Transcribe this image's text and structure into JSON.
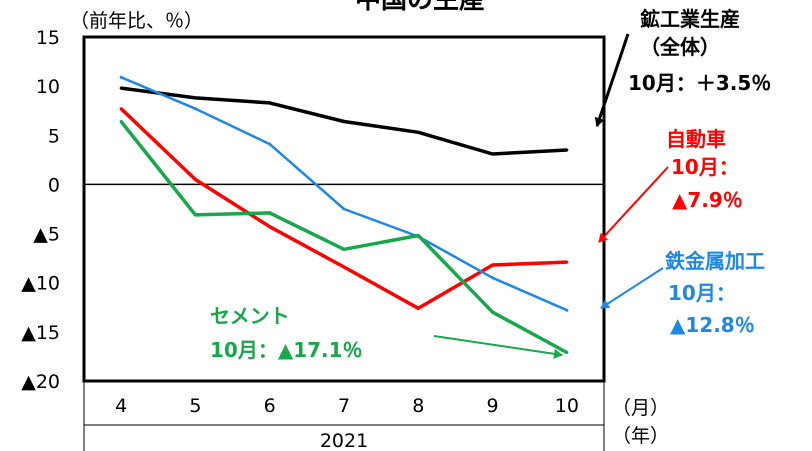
{
  "chart_data": {
    "type": "line",
    "title": "中国の生産",
    "ylabel": "（前年比、％）",
    "xlabel_unit": "（月）",
    "year_unit": "（年）",
    "year_label": "2021",
    "ylim": [
      -20,
      15
    ],
    "y_ticks": [
      {
        "value": 15,
        "label": "15"
      },
      {
        "value": 10,
        "label": "10"
      },
      {
        "value": 5,
        "label": "5"
      },
      {
        "value": 0,
        "label": "0"
      },
      {
        "value": -5,
        "label": "▲5"
      },
      {
        "value": -10,
        "label": "▲10"
      },
      {
        "value": -15,
        "label": "▲15"
      },
      {
        "value": -20,
        "label": "▲20"
      }
    ],
    "x": [
      "4",
      "5",
      "6",
      "7",
      "8",
      "9",
      "10"
    ],
    "series": [
      {
        "name": "鉱工業生産（全体）",
        "color": "#000000",
        "values": [
          9.8,
          8.8,
          8.3,
          6.4,
          5.3,
          3.1,
          3.5
        ],
        "label_lines": [
          "鉱工業生産",
          "（全体）",
          "10月：＋3.5％"
        ]
      },
      {
        "name": "自動車",
        "color": "#ff0000",
        "values": [
          7.7,
          0.5,
          -4.3,
          -8.4,
          -12.6,
          -8.2,
          -7.9
        ],
        "label_lines": [
          "自動車",
          "10月：",
          "▲7.9％"
        ]
      },
      {
        "name": "鉄金属加工",
        "color": "#1e88e5",
        "values": [
          10.9,
          7.7,
          4.1,
          -2.5,
          -5.3,
          -9.5,
          -12.8
        ],
        "label_lines": [
          "鉄金属加工",
          "10月：",
          "▲12.8％"
        ]
      },
      {
        "name": "セメント",
        "color": "#16a84a",
        "values": [
          6.4,
          -3.1,
          -2.9,
          -6.6,
          -5.2,
          -13.0,
          -17.1
        ],
        "label_lines": [
          "セメント",
          "10月：▲17.1％"
        ]
      }
    ]
  }
}
